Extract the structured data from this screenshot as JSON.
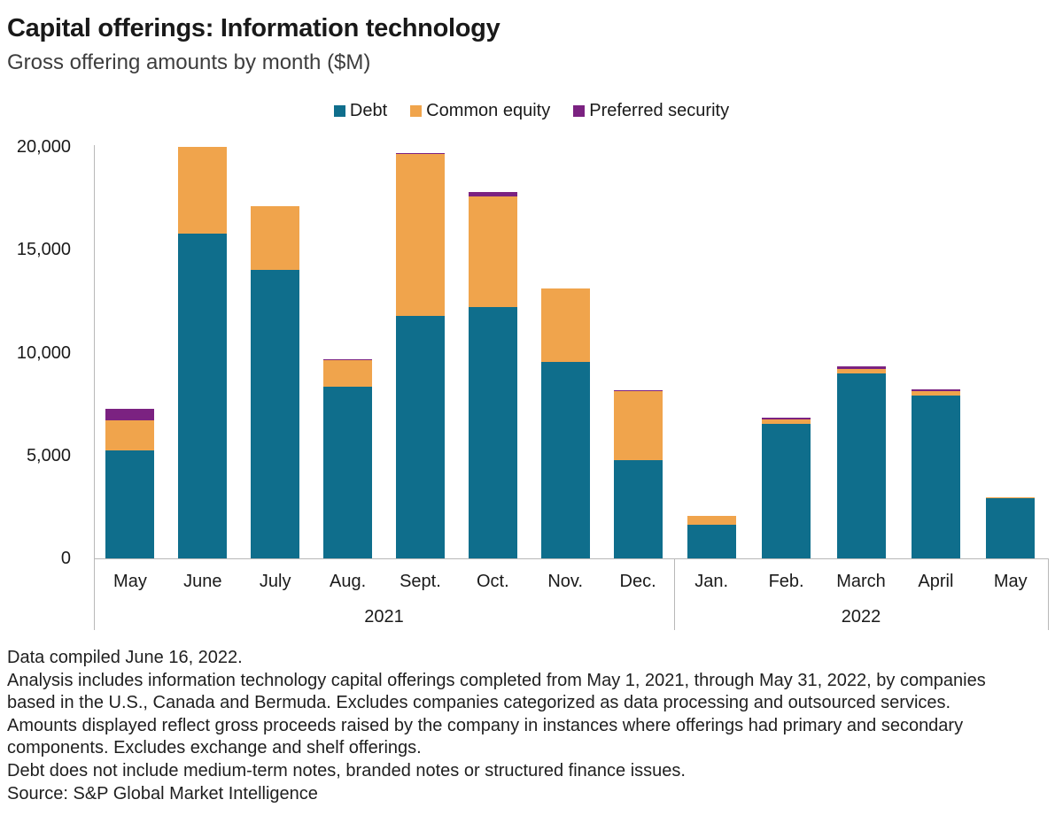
{
  "header": {
    "title": "Capital offerings: Information technology",
    "subtitle": "Gross offering amounts by month ($M)"
  },
  "chart_data": {
    "type": "bar",
    "stacked": true,
    "title": "Capital offerings: Information technology",
    "subtitle": "Gross offering amounts by month ($M)",
    "unit": "$M",
    "grid": false,
    "legend_position": "top-center",
    "ylim": [
      0,
      20000
    ],
    "yticks": [
      0,
      5000,
      10000,
      15000,
      20000
    ],
    "ytick_labels": [
      "0",
      "5,000",
      "10,000",
      "15,000",
      "20,000"
    ],
    "groups": [
      {
        "year": "2021",
        "months": [
          "May",
          "June",
          "July",
          "Aug.",
          "Sept.",
          "Oct.",
          "Nov.",
          "Dec."
        ]
      },
      {
        "year": "2022",
        "months": [
          "Jan.",
          "Feb.",
          "March",
          "April",
          "May"
        ]
      }
    ],
    "series": [
      {
        "name": "Debt",
        "color": "#0F6E8C",
        "values": [
          5250,
          15800,
          14000,
          8350,
          11790,
          12200,
          9540,
          4770,
          1650,
          6540,
          9000,
          7900,
          2940
        ]
      },
      {
        "name": "Common equity",
        "color": "#F0A44C",
        "values": [
          1460,
          4200,
          3100,
          1290,
          7880,
          5380,
          3580,
          3350,
          450,
          220,
          200,
          200,
          60
        ]
      },
      {
        "name": "Preferred security",
        "color": "#7B2281",
        "values": [
          570,
          0,
          0,
          40,
          50,
          220,
          0,
          40,
          0,
          90,
          110,
          100,
          0
        ]
      }
    ]
  },
  "footer": {
    "lines": [
      "Data compiled June 16, 2022.",
      "Analysis includes information technology capital offerings completed from May 1, 2021, through May 31, 2022, by companies",
      "based in the U.S., Canada and Bermuda. Excludes companies categorized as data processing and outsourced services.",
      "Amounts displayed reflect gross proceeds raised by the company in instances where offerings had primary and secondary",
      "components. Excludes exchange and shelf offerings.",
      "Debt does not include medium-term notes, branded notes or structured finance issues.",
      "Source: S&P Global Market Intelligence"
    ]
  }
}
